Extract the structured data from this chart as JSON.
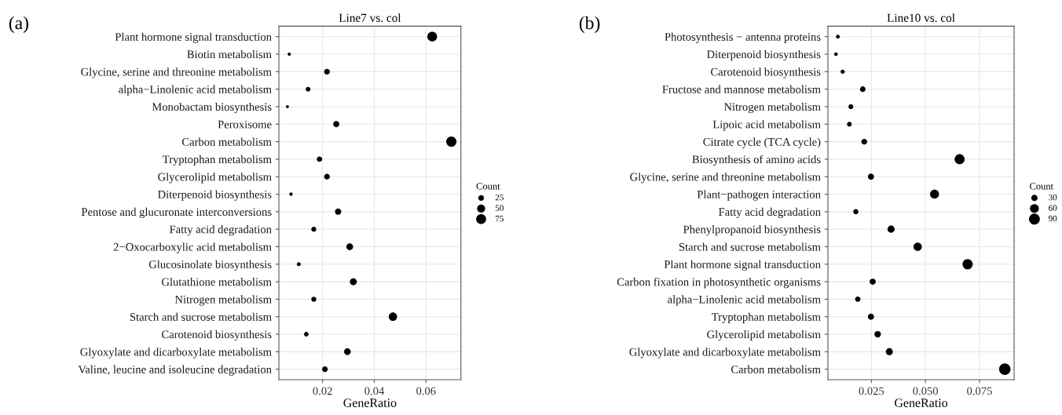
{
  "chart_data": [
    {
      "type": "scatter",
      "title": "Line7 vs. col",
      "xlabel": "GeneRatio",
      "legend_title": "Count",
      "annotations": [
        "(a)"
      ],
      "categories": [
        "Plant hormone signal transduction",
        "Biotin metabolism",
        "Glycine, serine and threonine metabolism",
        "alpha−Linolenic acid metabolism",
        "Monobactam biosynthesis",
        "Peroxisome",
        "Carbon metabolism",
        "Tryptophan metabolism",
        "Glycerolipid metabolism",
        "Diterpenoid biosynthesis",
        "Pentose and glucuronate interconversions",
        "Fatty acid degradation",
        "2−Oxocarboxylic acid metabolism",
        "Glucosinolate biosynthesis",
        "Glutathione metabolism",
        "Nitrogen metabolism",
        "Starch and sucrose metabolism",
        "Carotenoid biosynthesis",
        "Glyoxylate and dicarboxylate metabolism",
        "Valine, leucine and isoleucine degradation"
      ],
      "series": [
        {
          "color": "#000000",
          "values": [
            0.0624,
            0.0071,
            0.0217,
            0.0144,
            0.0064,
            0.0253,
            0.0698,
            0.0188,
            0.0217,
            0.0078,
            0.026,
            0.0166,
            0.0305,
            0.0108,
            0.0319,
            0.0166,
            0.0472,
            0.0137,
            0.0296,
            0.0209
          ],
          "sizes": [
            72,
            8,
            25,
            17,
            7,
            29,
            80,
            22,
            25,
            9,
            30,
            19,
            35,
            12,
            37,
            19,
            54,
            16,
            34,
            24
          ]
        }
      ],
      "size_legend": [
        25,
        50,
        75
      ],
      "orientation": "horizontal",
      "xlim": [
        0.0031,
        0.0735
      ],
      "xticks": [
        0.02,
        0.04,
        0.06
      ],
      "grid": true
    },
    {
      "type": "scatter",
      "title": "Line10 vs. col",
      "xlabel": "GeneRatio",
      "legend_title": "Count",
      "annotations": [
        "(b)"
      ],
      "categories": [
        "Photosynthesis − antenna proteins",
        "Diterpenoid biosynthesis",
        "Carotenoid biosynthesis",
        "Fructose and mannose metabolism",
        "Nitrogen metabolism",
        "Lipoic acid metabolism",
        "Citrate cycle (TCA cycle)",
        "Biosynthesis of amino acids",
        "Glycine, serine and threonine metabolism",
        "Plant−pathogen interaction",
        "Fatty acid degradation",
        "Phenylpropanoid biosynthesis",
        "Starch and sucrose metabolism",
        "Plant hormone signal transduction",
        "Carbon fixation in photosynthetic organisms",
        "alpha−Linolenic acid metabolism",
        "Tryptophan metabolism",
        "Glycerolipid metabolism",
        "Glyoxylate and dicarboxylate metabolism",
        "Carbon metabolism"
      ],
      "series": [
        {
          "color": "#000000",
          "values": [
            0.0095,
            0.0086,
            0.0117,
            0.021,
            0.0155,
            0.0148,
            0.0217,
            0.0658,
            0.0248,
            0.0542,
            0.0178,
            0.0341,
            0.0464,
            0.0695,
            0.0256,
            0.0187,
            0.0248,
            0.0279,
            0.0333,
            0.0867
          ],
          "sizes": [
            11,
            10,
            13,
            24,
            18,
            17,
            25,
            76,
            29,
            62,
            20,
            39,
            53,
            80,
            29,
            22,
            29,
            32,
            38,
            100
          ]
        }
      ],
      "size_legend": [
        30,
        60,
        90
      ],
      "orientation": "horizontal",
      "xlim": [
        0.0049,
        0.091
      ],
      "xticks": [
        {
          "value": 0.025,
          "label": "0.025"
        },
        {
          "value": 0.05,
          "label": "0.050"
        },
        {
          "value": 0.075,
          "label": "0.075"
        }
      ],
      "grid": true
    }
  ]
}
